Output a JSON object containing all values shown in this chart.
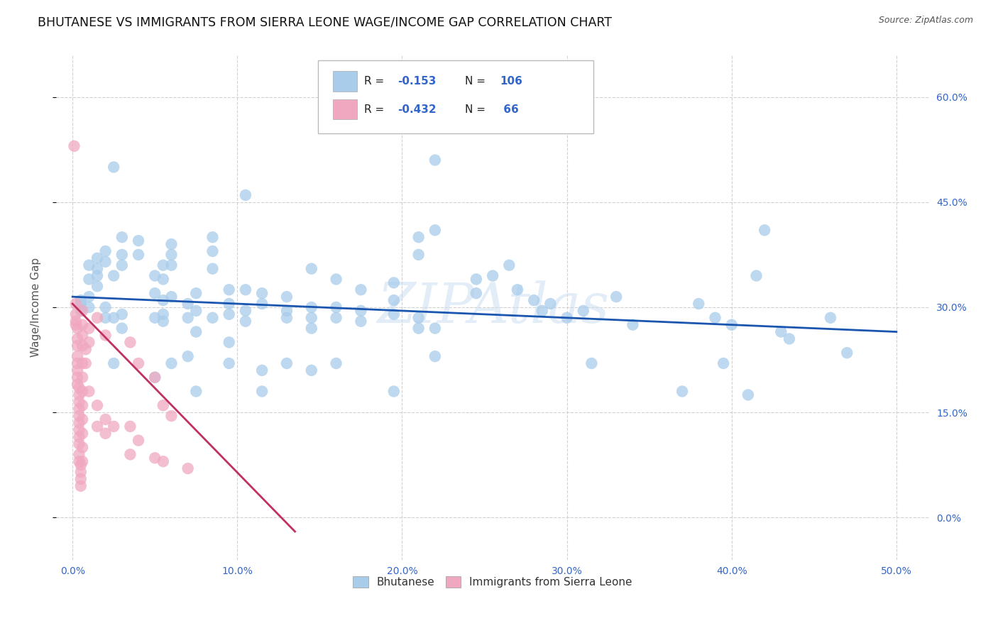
{
  "title": "BHUTANESE VS IMMIGRANTS FROM SIERRA LEONE WAGE/INCOME GAP CORRELATION CHART",
  "source": "Source: ZipAtlas.com",
  "ylabel": "Wage/Income Gap",
  "xlabel_ticks": [
    "0.0%",
    "10.0%",
    "20.0%",
    "30.0%",
    "40.0%",
    "50.0%"
  ],
  "xlabel_vals": [
    0.0,
    0.1,
    0.2,
    0.3,
    0.4,
    0.5
  ],
  "ylabel_ticks": [
    "0.0%",
    "15.0%",
    "30.0%",
    "45.0%",
    "60.0%"
  ],
  "ylabel_vals": [
    0.0,
    0.15,
    0.3,
    0.45,
    0.6
  ],
  "xlim": [
    -0.01,
    0.52
  ],
  "ylim": [
    -0.06,
    0.66
  ],
  "legend1_label": "Bhutanese",
  "legend2_label": "Immigrants from Sierra Leone",
  "r1": "-0.153",
  "n1": "106",
  "r2": "-0.432",
  "n2": "66",
  "blue_color": "#A8CCEA",
  "pink_color": "#F0A8C0",
  "blue_line_color": "#1A56B0",
  "pink_line_color": "#C03060",
  "blue_scatter": [
    [
      0.005,
      0.305
    ],
    [
      0.005,
      0.295
    ],
    [
      0.005,
      0.31
    ],
    [
      0.01,
      0.36
    ],
    [
      0.01,
      0.34
    ],
    [
      0.01,
      0.315
    ],
    [
      0.01,
      0.3
    ],
    [
      0.015,
      0.37
    ],
    [
      0.015,
      0.355
    ],
    [
      0.015,
      0.345
    ],
    [
      0.015,
      0.33
    ],
    [
      0.02,
      0.38
    ],
    [
      0.02,
      0.365
    ],
    [
      0.02,
      0.3
    ],
    [
      0.02,
      0.285
    ],
    [
      0.025,
      0.5
    ],
    [
      0.025,
      0.345
    ],
    [
      0.025,
      0.285
    ],
    [
      0.025,
      0.22
    ],
    [
      0.03,
      0.4
    ],
    [
      0.03,
      0.375
    ],
    [
      0.03,
      0.36
    ],
    [
      0.03,
      0.29
    ],
    [
      0.03,
      0.27
    ],
    [
      0.04,
      0.395
    ],
    [
      0.04,
      0.375
    ],
    [
      0.05,
      0.345
    ],
    [
      0.05,
      0.32
    ],
    [
      0.05,
      0.285
    ],
    [
      0.05,
      0.2
    ],
    [
      0.055,
      0.36
    ],
    [
      0.055,
      0.34
    ],
    [
      0.055,
      0.31
    ],
    [
      0.055,
      0.29
    ],
    [
      0.055,
      0.28
    ],
    [
      0.06,
      0.39
    ],
    [
      0.06,
      0.375
    ],
    [
      0.06,
      0.36
    ],
    [
      0.06,
      0.315
    ],
    [
      0.06,
      0.22
    ],
    [
      0.07,
      0.305
    ],
    [
      0.07,
      0.285
    ],
    [
      0.07,
      0.23
    ],
    [
      0.075,
      0.32
    ],
    [
      0.075,
      0.295
    ],
    [
      0.075,
      0.265
    ],
    [
      0.075,
      0.18
    ],
    [
      0.085,
      0.4
    ],
    [
      0.085,
      0.38
    ],
    [
      0.085,
      0.355
    ],
    [
      0.085,
      0.285
    ],
    [
      0.095,
      0.325
    ],
    [
      0.095,
      0.305
    ],
    [
      0.095,
      0.29
    ],
    [
      0.095,
      0.25
    ],
    [
      0.095,
      0.22
    ],
    [
      0.105,
      0.46
    ],
    [
      0.105,
      0.325
    ],
    [
      0.105,
      0.295
    ],
    [
      0.105,
      0.28
    ],
    [
      0.115,
      0.32
    ],
    [
      0.115,
      0.305
    ],
    [
      0.115,
      0.21
    ],
    [
      0.115,
      0.18
    ],
    [
      0.13,
      0.315
    ],
    [
      0.13,
      0.295
    ],
    [
      0.13,
      0.285
    ],
    [
      0.13,
      0.22
    ],
    [
      0.145,
      0.355
    ],
    [
      0.145,
      0.3
    ],
    [
      0.145,
      0.285
    ],
    [
      0.145,
      0.27
    ],
    [
      0.145,
      0.21
    ],
    [
      0.16,
      0.34
    ],
    [
      0.16,
      0.3
    ],
    [
      0.16,
      0.285
    ],
    [
      0.16,
      0.22
    ],
    [
      0.175,
      0.325
    ],
    [
      0.175,
      0.295
    ],
    [
      0.175,
      0.28
    ],
    [
      0.195,
      0.335
    ],
    [
      0.195,
      0.31
    ],
    [
      0.195,
      0.29
    ],
    [
      0.195,
      0.18
    ],
    [
      0.21,
      0.4
    ],
    [
      0.21,
      0.375
    ],
    [
      0.21,
      0.285
    ],
    [
      0.21,
      0.27
    ],
    [
      0.22,
      0.51
    ],
    [
      0.22,
      0.41
    ],
    [
      0.22,
      0.27
    ],
    [
      0.22,
      0.23
    ],
    [
      0.245,
      0.34
    ],
    [
      0.245,
      0.32
    ],
    [
      0.255,
      0.345
    ],
    [
      0.265,
      0.36
    ],
    [
      0.27,
      0.325
    ],
    [
      0.28,
      0.31
    ],
    [
      0.285,
      0.295
    ],
    [
      0.29,
      0.305
    ],
    [
      0.3,
      0.285
    ],
    [
      0.31,
      0.295
    ],
    [
      0.315,
      0.22
    ],
    [
      0.33,
      0.315
    ],
    [
      0.34,
      0.275
    ],
    [
      0.37,
      0.18
    ],
    [
      0.38,
      0.305
    ],
    [
      0.39,
      0.285
    ],
    [
      0.395,
      0.22
    ],
    [
      0.4,
      0.275
    ],
    [
      0.41,
      0.175
    ],
    [
      0.415,
      0.345
    ],
    [
      0.42,
      0.41
    ],
    [
      0.43,
      0.265
    ],
    [
      0.435,
      0.255
    ],
    [
      0.46,
      0.285
    ],
    [
      0.47,
      0.235
    ]
  ],
  "pink_scatter": [
    [
      0.001,
      0.53
    ],
    [
      0.002,
      0.305
    ],
    [
      0.002,
      0.29
    ],
    [
      0.002,
      0.28
    ],
    [
      0.002,
      0.275
    ],
    [
      0.003,
      0.27
    ],
    [
      0.003,
      0.255
    ],
    [
      0.003,
      0.245
    ],
    [
      0.003,
      0.23
    ],
    [
      0.003,
      0.22
    ],
    [
      0.003,
      0.21
    ],
    [
      0.003,
      0.2
    ],
    [
      0.003,
      0.19
    ],
    [
      0.004,
      0.185
    ],
    [
      0.004,
      0.175
    ],
    [
      0.004,
      0.165
    ],
    [
      0.004,
      0.155
    ],
    [
      0.004,
      0.145
    ],
    [
      0.004,
      0.135
    ],
    [
      0.004,
      0.125
    ],
    [
      0.004,
      0.115
    ],
    [
      0.004,
      0.105
    ],
    [
      0.004,
      0.09
    ],
    [
      0.004,
      0.08
    ],
    [
      0.005,
      0.075
    ],
    [
      0.005,
      0.065
    ],
    [
      0.005,
      0.055
    ],
    [
      0.005,
      0.045
    ],
    [
      0.006,
      0.295
    ],
    [
      0.006,
      0.275
    ],
    [
      0.006,
      0.26
    ],
    [
      0.006,
      0.245
    ],
    [
      0.006,
      0.22
    ],
    [
      0.006,
      0.2
    ],
    [
      0.006,
      0.18
    ],
    [
      0.006,
      0.16
    ],
    [
      0.006,
      0.14
    ],
    [
      0.006,
      0.12
    ],
    [
      0.006,
      0.1
    ],
    [
      0.006,
      0.08
    ],
    [
      0.008,
      0.24
    ],
    [
      0.008,
      0.22
    ],
    [
      0.01,
      0.27
    ],
    [
      0.01,
      0.25
    ],
    [
      0.01,
      0.18
    ],
    [
      0.015,
      0.285
    ],
    [
      0.015,
      0.16
    ],
    [
      0.015,
      0.13
    ],
    [
      0.02,
      0.26
    ],
    [
      0.02,
      0.14
    ],
    [
      0.02,
      0.12
    ],
    [
      0.025,
      0.13
    ],
    [
      0.035,
      0.25
    ],
    [
      0.035,
      0.13
    ],
    [
      0.035,
      0.09
    ],
    [
      0.04,
      0.22
    ],
    [
      0.04,
      0.11
    ],
    [
      0.05,
      0.2
    ],
    [
      0.05,
      0.085
    ],
    [
      0.055,
      0.16
    ],
    [
      0.055,
      0.08
    ],
    [
      0.06,
      0.145
    ],
    [
      0.07,
      0.07
    ]
  ],
  "blue_line_x": [
    0.0,
    0.5
  ],
  "blue_line_y": [
    0.315,
    0.265
  ],
  "pink_line_x": [
    0.0,
    0.135
  ],
  "pink_line_y": [
    0.305,
    -0.02
  ],
  "watermark": "ZIPAtlas",
  "title_fontsize": 12.5,
  "tick_fontsize": 10,
  "label_fontsize": 11,
  "tick_color": "#3366CC"
}
